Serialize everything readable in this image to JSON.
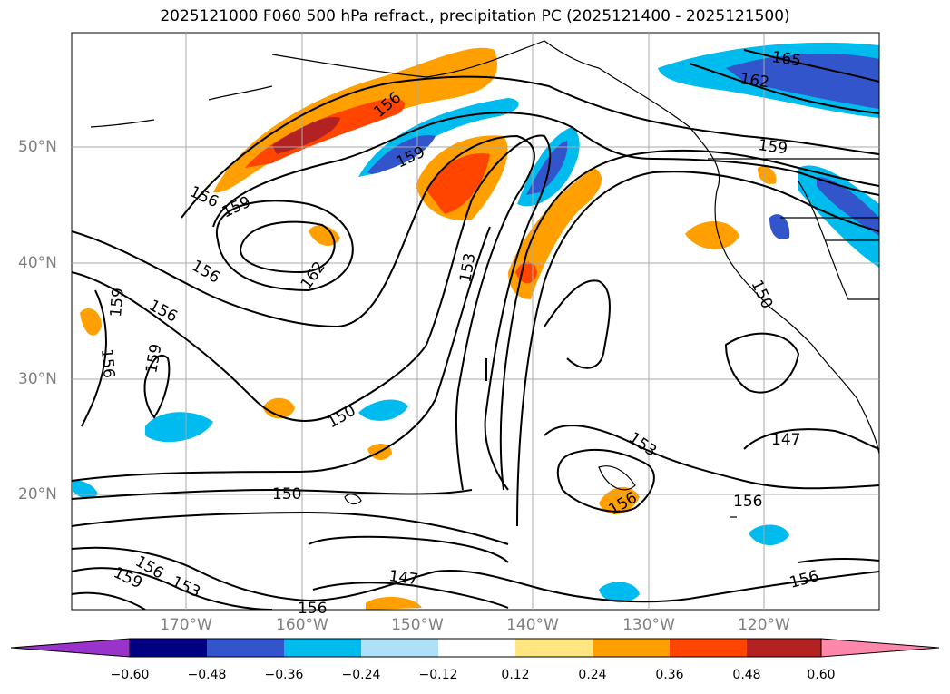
{
  "title": "2025121000 F060 500 hPa refract., precipitation PC (2025121400 - 2025121500)",
  "lat_labels": [
    "50°N",
    "40°N",
    "30°N",
    "20°N"
  ],
  "lon_labels": [
    "170°W",
    "160°W",
    "150°W",
    "140°W",
    "130°W",
    "120°W"
  ],
  "contour_labels": [
    "165",
    "162",
    "159",
    "159",
    "159",
    "156",
    "156",
    "156",
    "162",
    "153",
    "150",
    "159",
    "156",
    "159",
    "156",
    "150",
    "150",
    "147",
    "153",
    "156",
    "156",
    "147",
    "156",
    "159",
    "156",
    "153",
    "156"
  ],
  "colorbar": {
    "ticks": [
      "−0.60",
      "−0.48",
      "−0.36",
      "−0.24",
      "−0.12",
      "0.12",
      "0.24",
      "0.36",
      "0.48",
      "0.60"
    ],
    "colors": [
      "#9933cc",
      "#000080",
      "#3355cc",
      "#00bbee",
      "#aee0f8",
      "#ffffff",
      "#ffe680",
      "#ffa000",
      "#ff4500",
      "#b22222",
      "#ff88aa"
    ]
  },
  "colors": {
    "contour": "#000000",
    "grid": "#aaaaaa",
    "coast": "#000000"
  }
}
